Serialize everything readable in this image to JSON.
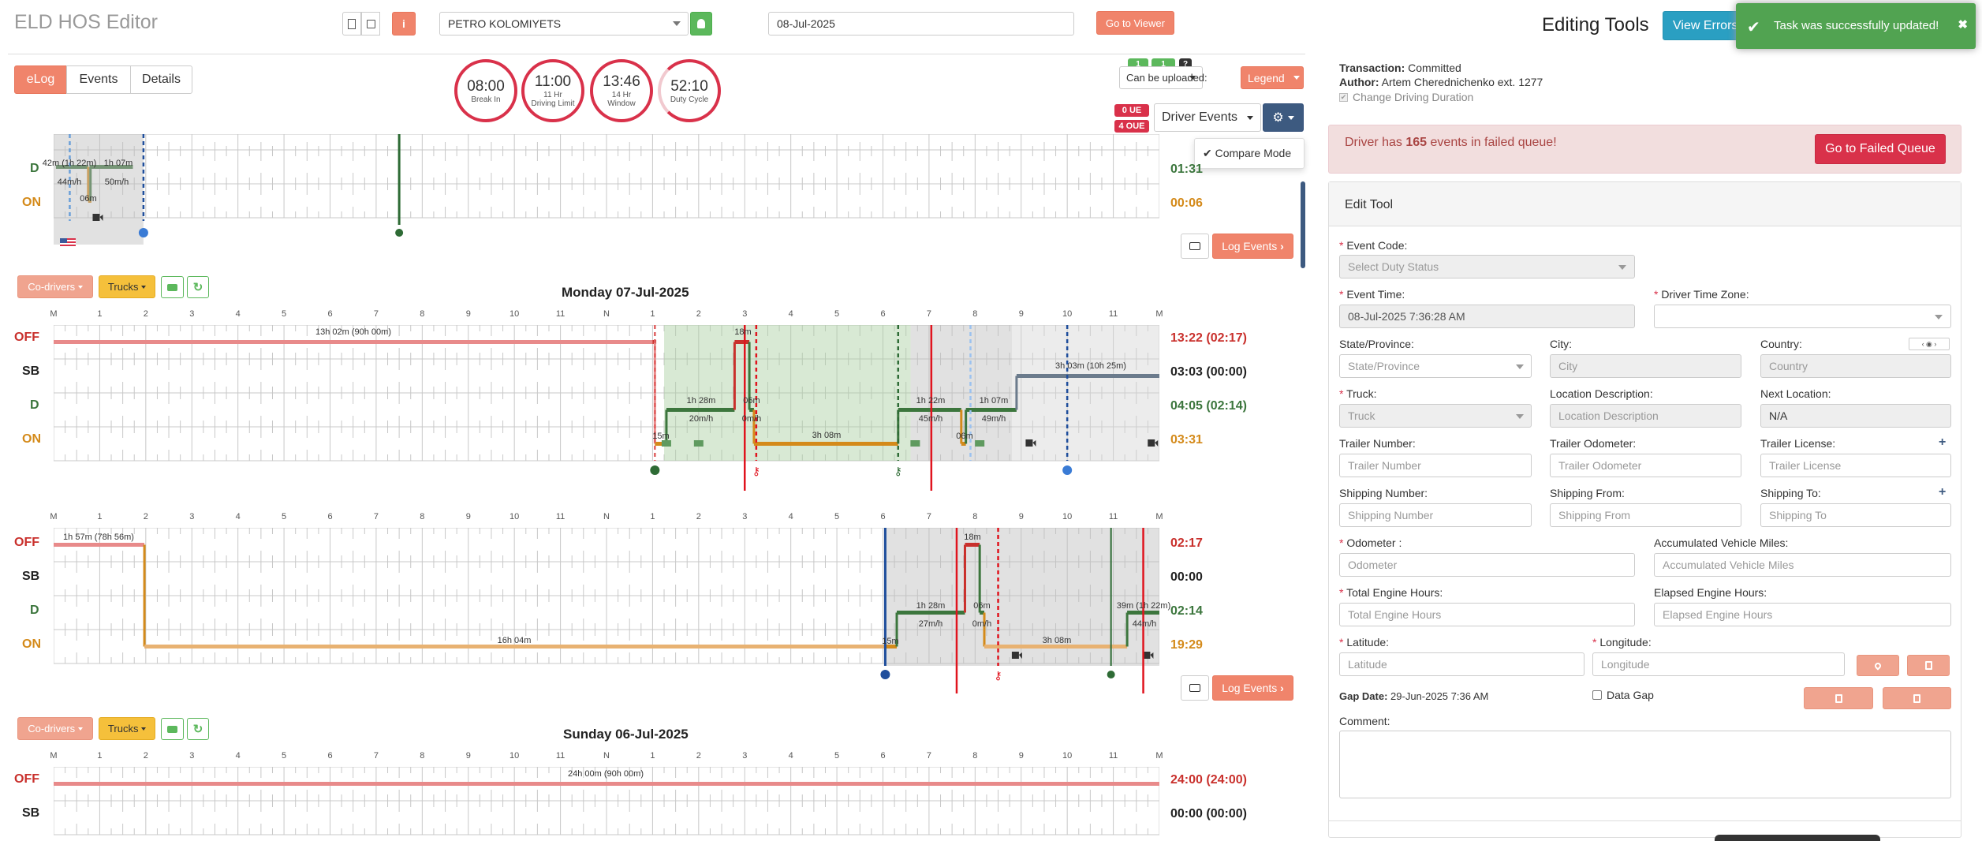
{
  "header": {
    "app_title": "ELD HOS Editor",
    "driver_select": "PETRO KOLOMIYETS",
    "date_value": "08-Jul-2025",
    "goto_viewer": "Go to Viewer",
    "editing_tools": "Editing Tools",
    "view_errors": "View Errors"
  },
  "toast": {
    "message": "Task was successfully updated!",
    "close": "✖"
  },
  "tabs": [
    {
      "label": "eLog",
      "active": true
    },
    {
      "label": "Events"
    },
    {
      "label": "Details"
    }
  ],
  "clocks": [
    {
      "value": "08:00",
      "label": "Break In"
    },
    {
      "value": "11:00",
      "label": "11 Hr",
      "label2": "Driving Limit"
    },
    {
      "value": "13:46",
      "label": "14 Hr",
      "label2": "Window"
    },
    {
      "value": "52:10",
      "label": "Duty Cycle"
    }
  ],
  "toolbar": {
    "badge1": "1",
    "badge2": "1",
    "badge_q": "?",
    "can_upload": "Can be uploaded:",
    "legend": "Legend",
    "ue": "0 UE",
    "oue": "4 OUE",
    "driver_events": "Driver Events",
    "compare_mode": "Compare Mode",
    "log_events": "Log Events"
  },
  "day_controls": {
    "codrivers": "Co-drivers",
    "trucks": "Trucks"
  },
  "axis": [
    "M",
    "1",
    "2",
    "3",
    "4",
    "5",
    "6",
    "7",
    "8",
    "9",
    "10",
    "11",
    "N",
    "1",
    "2",
    "3",
    "4",
    "5",
    "6",
    "7",
    "8",
    "9",
    "10",
    "11",
    "M"
  ],
  "rows": {
    "off": "OFF",
    "sb": "SB",
    "d": "D",
    "on": "ON"
  },
  "top_partial": {
    "d_total": "01:31",
    "on_total": "00:06",
    "labels": [
      "42m (1h 22m)",
      "1h 07m",
      "44m/h",
      "50m/h",
      "06m"
    ]
  },
  "day1": {
    "title": "Monday 07-Jul-2025",
    "totals": {
      "off": "13:22 (02:17)",
      "sb": "03:03 (00:00)",
      "d": "04:05 (02:14)",
      "on": "03:31"
    },
    "labels": {
      "off1": "13h 02m (90h 00m)",
      "off2": "18m",
      "sb1": "3h 03m (10h 25m)",
      "d1": "1h 28m",
      "d1b": "20m/h",
      "d2": "06m",
      "d2b": "0m/h",
      "d3": "1h 22m",
      "d3b": "45m/h",
      "d4": "1h 07m",
      "d4b": "49m/h",
      "on1": "15m",
      "on2": "3h 08m",
      "on3": "06m"
    }
  },
  "day2": {
    "totals": {
      "off": "02:17",
      "sb": "00:00",
      "d": "02:14",
      "on": "19:29"
    },
    "labels": {
      "off1": "1h 57m (78h 56m)",
      "off2": "18m",
      "d1": "1h 28m",
      "d1b": "27m/h",
      "d2": "06m",
      "d2b": "0m/h",
      "d3": "39m (1h 22m)",
      "d3b": "44m/h",
      "on1": "16h 04m",
      "on2": "15m",
      "on3": "3h 08m"
    }
  },
  "day3": {
    "title": "Sunday 06-Jul-2025",
    "totals": {
      "off": "24:00 (24:00)",
      "sb": "00:00 (00:00)"
    },
    "labels": {
      "off1": "24h 00m (90h 00m)"
    }
  },
  "panel": {
    "transaction_label": "Transaction:",
    "transaction_value": "Committed",
    "author_label": "Author:",
    "author_value": "Artem Cherednichenko ext. 1277",
    "change_duration": "Change Driving Duration",
    "failed_text_pre": "Driver has",
    "failed_count": "165",
    "failed_text_post": "events in failed queue!",
    "failed_button": "Go to Failed Queue",
    "edit_tool": "Edit Tool"
  },
  "form": {
    "event_code": {
      "label": "Event Code:",
      "placeholder": "Select Duty Status"
    },
    "event_time": {
      "label": "Event Time:",
      "value": "08-Jul-2025 7:36:28 AM"
    },
    "tz": {
      "label": "Driver Time Zone:"
    },
    "state": {
      "label": "State/Province:",
      "placeholder": "State/Province"
    },
    "city": {
      "label": "City:",
      "placeholder": "City"
    },
    "country": {
      "label": "Country:",
      "placeholder": "Country"
    },
    "truck": {
      "label": "Truck:",
      "placeholder": "Truck"
    },
    "loc_desc": {
      "label": "Location Description:",
      "placeholder": "Location Description"
    },
    "next_loc": {
      "label": "Next Location:",
      "value": "N/A"
    },
    "trailer_num": {
      "label": "Trailer Number:",
      "placeholder": "Trailer Number"
    },
    "trailer_odo": {
      "label": "Trailer Odometer:",
      "placeholder": "Trailer Odometer"
    },
    "trailer_lic": {
      "label": "Trailer License:",
      "placeholder": "Trailer License"
    },
    "ship_num": {
      "label": "Shipping Number:",
      "placeholder": "Shipping Number"
    },
    "ship_from": {
      "label": "Shipping From:",
      "placeholder": "Shipping From"
    },
    "ship_to": {
      "label": "Shipping To:",
      "placeholder": "Shipping To"
    },
    "odometer": {
      "label": "Odometer :",
      "placeholder": "Odometer"
    },
    "acc_miles": {
      "label": "Accumulated Vehicle Miles:",
      "placeholder": "Accumulated Vehicle Miles"
    },
    "eng_hours": {
      "label": "Total Engine Hours:",
      "placeholder": "Total Engine Hours"
    },
    "elapsed_hours": {
      "label": "Elapsed Engine Hours:",
      "placeholder": "Elapsed Engine Hours"
    },
    "lat": {
      "label": "Latitude:",
      "placeholder": "Latitude"
    },
    "lon": {
      "label": "Longitude:",
      "placeholder": "Longitude"
    },
    "gap_label": "Gap Date:",
    "gap_value": "29-Jun-2025 7:36 AM",
    "data_gap": "Data Gap",
    "comment": "Comment:"
  },
  "colors": {
    "off": "#c9302c",
    "sb": "#222222",
    "d": "#3c763d",
    "on": "#d48a1a",
    "orange": "#f0846b"
  }
}
